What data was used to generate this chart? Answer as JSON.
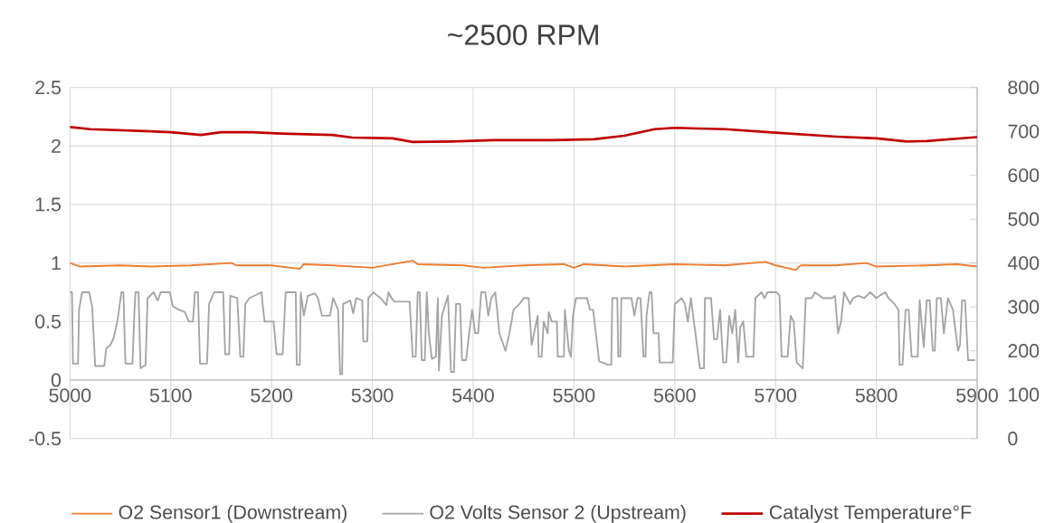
{
  "chart_data": {
    "type": "line",
    "title": "~2500 RPM",
    "xlim": [
      5000,
      5900
    ],
    "xticks": [
      5000,
      5100,
      5200,
      5300,
      5400,
      5500,
      5600,
      5700,
      5800,
      5900
    ],
    "ylim": [
      -0.5,
      2.5
    ],
    "yticks": [
      -0.5,
      0,
      0.5,
      1,
      1.5,
      2,
      2.5
    ],
    "y2lim": [
      0,
      800
    ],
    "y2ticks": [
      0,
      100,
      200,
      300,
      400,
      500,
      600,
      700,
      800
    ],
    "grid": true,
    "legend": "bottom",
    "series": [
      {
        "name": "O2 Sensor1 (Downstream)",
        "color": "#ed7d31",
        "x": [
          5000,
          5010,
          5050,
          5080,
          5120,
          5160,
          5165,
          5200,
          5228,
          5232,
          5260,
          5300,
          5340,
          5345,
          5390,
          5410,
          5450,
          5490,
          5500,
          5510,
          5550,
          5600,
          5650,
          5690,
          5700,
          5720,
          5725,
          5760,
          5790,
          5800,
          5850,
          5880,
          5900
        ],
        "values": [
          1.0,
          0.97,
          0.98,
          0.97,
          0.98,
          1.0,
          0.98,
          0.98,
          0.95,
          0.99,
          0.98,
          0.96,
          1.02,
          0.99,
          0.98,
          0.96,
          0.98,
          0.99,
          0.96,
          0.99,
          0.97,
          0.99,
          0.98,
          1.01,
          0.98,
          0.94,
          0.98,
          0.98,
          1.0,
          0.97,
          0.98,
          0.99,
          0.97
        ]
      },
      {
        "name": "O2 Volts Sensor 2 (Upstream)",
        "color": "#a5a5a5",
        "x": [
          5000,
          5002,
          5003,
          5008,
          5009,
          5012,
          5019,
          5022,
          5025,
          5034,
          5036,
          5040,
          5043,
          5047,
          5051,
          5053,
          5055,
          5062,
          5064,
          5065,
          5068,
          5070,
          5075,
          5077,
          5083,
          5087,
          5090,
          5099,
          5102,
          5108,
          5114,
          5118,
          5122,
          5124,
          5127,
          5129,
          5136,
          5138,
          5143,
          5152,
          5154,
          5158,
          5159,
          5166,
          5169,
          5172,
          5174,
          5178,
          5190,
          5193,
          5202,
          5205,
          5211,
          5214,
          5224,
          5225,
          5228,
          5229,
          5232,
          5236,
          5243,
          5246,
          5250,
          5258,
          5261,
          5266,
          5268,
          5270,
          5271,
          5278,
          5281,
          5284,
          5290,
          5291,
          5295,
          5296,
          5301,
          5308,
          5314,
          5316,
          5319,
          5322,
          5337,
          5340,
          5343,
          5345,
          5347,
          5349,
          5352,
          5354,
          5356,
          5359,
          5363,
          5365,
          5366,
          5369,
          5375,
          5378,
          5381,
          5383,
          5387,
          5389,
          5393,
          5396,
          5399,
          5402,
          5405,
          5408,
          5412,
          5415,
          5418,
          5422,
          5426,
          5432,
          5436,
          5440,
          5446,
          5450,
          5455,
          5458,
          5464,
          5465,
          5468,
          5470,
          5474,
          5475,
          5478,
          5483,
          5484,
          5490,
          5491,
          5495,
          5497,
          5499,
          5502,
          5513,
          5516,
          5519,
          5525,
          5534,
          5537,
          5538,
          5543,
          5544,
          5546,
          5547,
          5557,
          5560,
          5563,
          5566,
          5569,
          5571,
          5572,
          5575,
          5577,
          5579,
          5584,
          5585,
          5598,
          5600,
          5607,
          5610,
          5613,
          5616,
          5619,
          5625,
          5629,
          5630,
          5636,
          5639,
          5642,
          5645,
          5648,
          5651,
          5654,
          5657,
          5660,
          5663,
          5665,
          5668,
          5671,
          5678,
          5680,
          5686,
          5689,
          5692,
          5701,
          5704,
          5706,
          5712,
          5715,
          5718,
          5721,
          5727,
          5730,
          5736,
          5739,
          5747,
          5756,
          5759,
          5762,
          5765,
          5768,
          5774,
          5777,
          5782,
          5788,
          5794,
          5800,
          5803,
          5809,
          5812,
          5818,
          5822,
          5823,
          5826,
          5829,
          5832,
          5835,
          5841,
          5843,
          5847,
          5850,
          5853,
          5856,
          5858,
          5860,
          5864,
          5867,
          5871,
          5876,
          5881,
          5883,
          5885,
          5888,
          5891,
          5898
        ],
        "values": [
          0.75,
          0.75,
          0.14,
          0.14,
          0.6,
          0.75,
          0.75,
          0.63,
          0.12,
          0.12,
          0.27,
          0.3,
          0.35,
          0.5,
          0.75,
          0.75,
          0.14,
          0.14,
          0.6,
          0.75,
          0.75,
          0.1,
          0.13,
          0.7,
          0.75,
          0.68,
          0.75,
          0.75,
          0.63,
          0.6,
          0.58,
          0.5,
          0.5,
          0.75,
          0.75,
          0.14,
          0.14,
          0.65,
          0.75,
          0.75,
          0.22,
          0.22,
          0.72,
          0.7,
          0.2,
          0.2,
          0.65,
          0.7,
          0.75,
          0.5,
          0.5,
          0.22,
          0.22,
          0.75,
          0.75,
          0.13,
          0.13,
          0.75,
          0.55,
          0.72,
          0.74,
          0.7,
          0.55,
          0.55,
          0.7,
          0.6,
          0.05,
          0.05,
          0.65,
          0.68,
          0.57,
          0.7,
          0.68,
          0.33,
          0.33,
          0.7,
          0.75,
          0.7,
          0.64,
          0.75,
          0.7,
          0.67,
          0.67,
          0.2,
          0.2,
          0.75,
          0.75,
          0.17,
          0.17,
          0.75,
          0.4,
          0.18,
          0.2,
          0.7,
          0.08,
          0.55,
          0.72,
          0.07,
          0.07,
          0.65,
          0.65,
          0.17,
          0.17,
          0.4,
          0.6,
          0.4,
          0.4,
          0.75,
          0.75,
          0.55,
          0.7,
          0.75,
          0.4,
          0.25,
          0.4,
          0.6,
          0.65,
          0.7,
          0.7,
          0.3,
          0.55,
          0.2,
          0.2,
          0.5,
          0.4,
          0.58,
          0.5,
          0.5,
          0.2,
          0.2,
          0.6,
          0.25,
          0.2,
          0.55,
          0.7,
          0.7,
          0.6,
          0.6,
          0.16,
          0.13,
          0.13,
          0.7,
          0.7,
          0.2,
          0.2,
          0.7,
          0.7,
          0.55,
          0.7,
          0.7,
          0.2,
          0.2,
          0.55,
          0.75,
          0.75,
          0.4,
          0.4,
          0.15,
          0.15,
          0.65,
          0.7,
          0.65,
          0.5,
          0.7,
          0.5,
          0.1,
          0.1,
          0.7,
          0.7,
          0.35,
          0.35,
          0.6,
          0.15,
          0.15,
          0.55,
          0.4,
          0.6,
          0.15,
          0.45,
          0.5,
          0.2,
          0.2,
          0.7,
          0.75,
          0.7,
          0.75,
          0.75,
          0.72,
          0.2,
          0.2,
          0.55,
          0.5,
          0.15,
          0.1,
          0.7,
          0.7,
          0.75,
          0.7,
          0.7,
          0.72,
          0.4,
          0.5,
          0.75,
          0.65,
          0.7,
          0.72,
          0.7,
          0.75,
          0.7,
          0.72,
          0.75,
          0.7,
          0.65,
          0.6,
          0.13,
          0.13,
          0.6,
          0.6,
          0.2,
          0.2,
          0.68,
          0.28,
          0.68,
          0.68,
          0.25,
          0.25,
          0.7,
          0.7,
          0.4,
          0.7,
          0.6,
          0.25,
          0.3,
          0.68,
          0.68,
          0.17,
          0.17
        ]
      },
      {
        "name": "Catalyst Temperature°F",
        "color": "#c00000",
        "axis": "y2",
        "x": [
          5000,
          5020,
          5080,
          5100,
          5130,
          5150,
          5180,
          5210,
          5260,
          5280,
          5320,
          5340,
          5380,
          5420,
          5480,
          5520,
          5550,
          5580,
          5600,
          5650,
          5700,
          5760,
          5800,
          5830,
          5850,
          5900
        ],
        "values": [
          710,
          705,
          700,
          698,
          692,
          698,
          698,
          695,
          692,
          686,
          684,
          676,
          677,
          680,
          680,
          682,
          690,
          705,
          708,
          705,
          697,
          688,
          684,
          677,
          678,
          687
        ]
      }
    ]
  }
}
